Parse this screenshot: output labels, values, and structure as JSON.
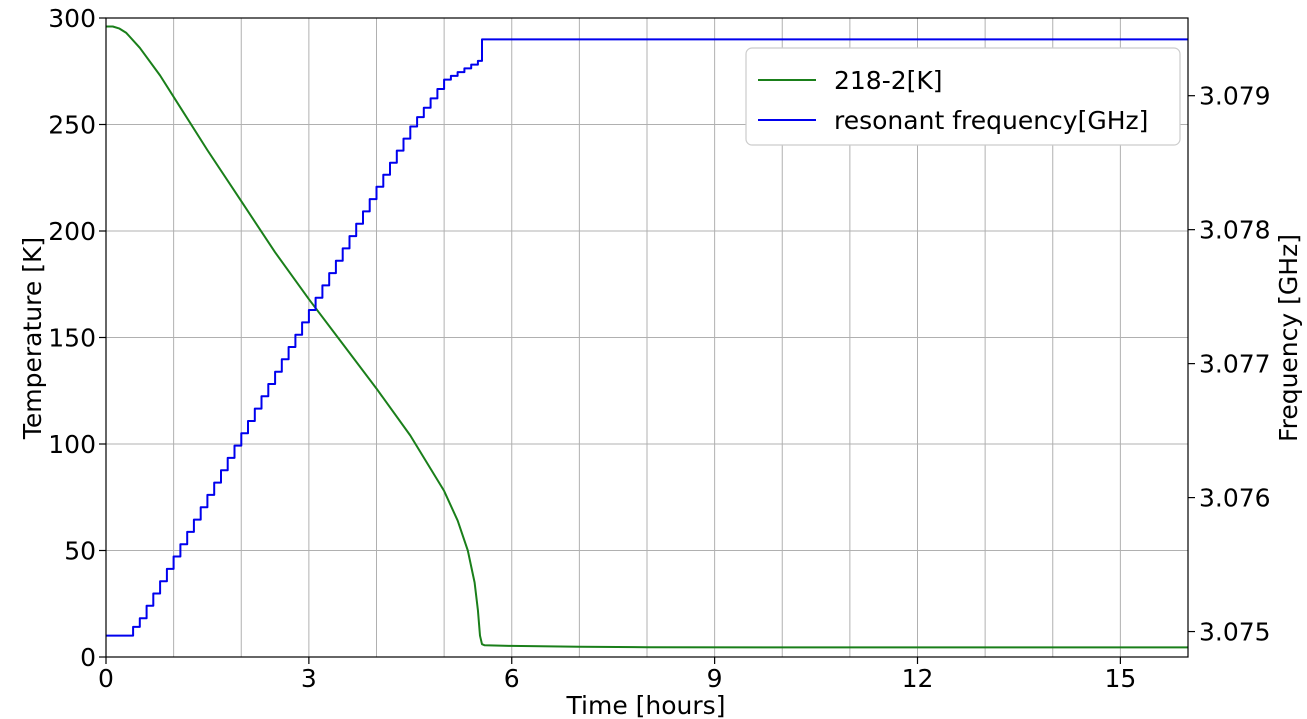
{
  "chart_data": {
    "type": "line",
    "xlabel": "Time [hours]",
    "ylabel": "Temperature [K]",
    "y2label": "Frequency [GHz]",
    "xlim": [
      0,
      16
    ],
    "ylim": [
      0,
      300
    ],
    "y2lim": [
      3.07481,
      3.07958
    ],
    "grid": true,
    "legend_position": "top-right",
    "x_ticks": [
      "0",
      "3",
      "6",
      "9",
      "12",
      "15"
    ],
    "y_ticks": [
      "0",
      "50",
      "100",
      "150",
      "200",
      "250",
      "300"
    ],
    "y2_ticks": [
      "3.075",
      "3.076",
      "3.077",
      "3.078",
      "3.079"
    ],
    "series": [
      {
        "name": "218-2[K]",
        "axis": "left",
        "color": "#1a7f1a",
        "x": [
          0,
          0.1,
          0.2,
          0.3,
          0.5,
          0.8,
          1.0,
          1.5,
          2.0,
          2.5,
          3.0,
          3.5,
          4.0,
          4.5,
          5.0,
          5.2,
          5.35,
          5.45,
          5.5,
          5.53,
          5.56,
          5.6,
          6.0,
          7.0,
          8.0,
          10.0,
          12.0,
          14.0,
          16.0
        ],
        "y": [
          296,
          296,
          295,
          293,
          286,
          273,
          263,
          238,
          214,
          190,
          168,
          147,
          126,
          104,
          78,
          64,
          50,
          35,
          22,
          10,
          6,
          5.5,
          5.2,
          4.8,
          4.6,
          4.5,
          4.5,
          4.5,
          4.5
        ]
      },
      {
        "name": "resonant frequency[GHz]",
        "axis": "right",
        "color": "#0000ee",
        "x": [
          0,
          0.3,
          0.5,
          1.0,
          1.5,
          2.0,
          2.5,
          3.0,
          3.5,
          4.0,
          4.5,
          5.0,
          5.5,
          5.55,
          5.56,
          16.0
        ],
        "y": [
          3.07497,
          3.07497,
          3.0751,
          3.07556,
          3.07602,
          3.07648,
          3.07694,
          3.0774,
          3.07786,
          3.07832,
          3.07877,
          3.07912,
          3.07926,
          3.07926,
          3.07942,
          3.07942
        ]
      }
    ]
  }
}
